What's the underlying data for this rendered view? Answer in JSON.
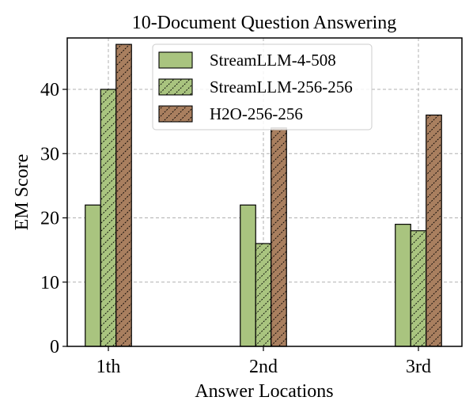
{
  "chart_data": {
    "type": "bar",
    "title": "10-Document Question Answering",
    "xlabel": "Answer Locations",
    "ylabel": "EM Score",
    "categories": [
      "1th",
      "2nd",
      "3rd"
    ],
    "ylim": [
      0,
      48
    ],
    "yticks": [
      0,
      10,
      20,
      30,
      40
    ],
    "grid": true,
    "legend_position": "top-center",
    "series": [
      {
        "name": "StreamLLM-4-508",
        "values": [
          22,
          22,
          19
        ],
        "color": "#a9c47f",
        "hatch": "none"
      },
      {
        "name": "StreamLLM-256-256",
        "values": [
          40,
          16,
          18
        ],
        "color": "#a9c47f",
        "hatch": "diagonal"
      },
      {
        "name": "H2O-256-256",
        "values": [
          47,
          34,
          36
        ],
        "color": "#a97f5f",
        "hatch": "diagonal"
      }
    ]
  }
}
